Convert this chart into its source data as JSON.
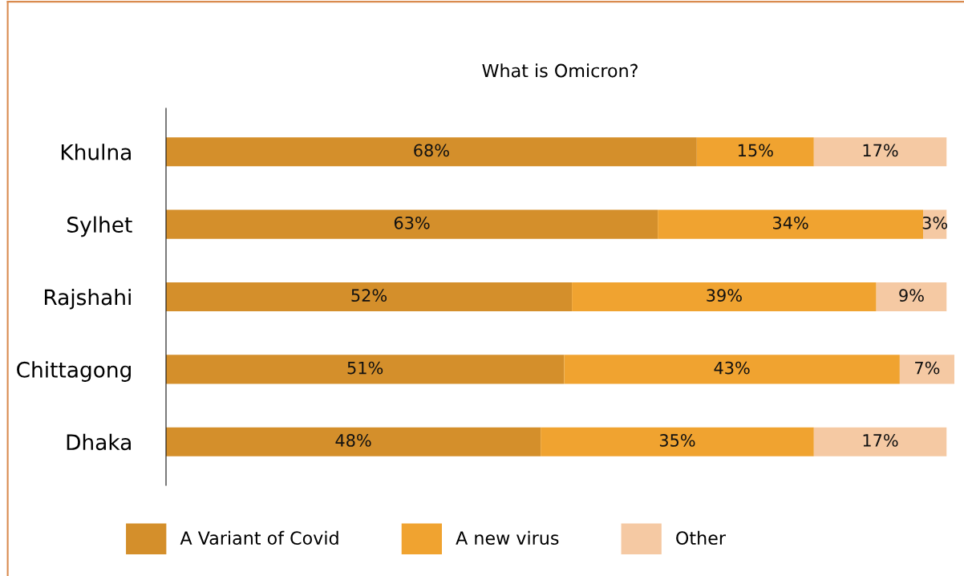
{
  "chart_data": {
    "type": "bar",
    "orientation": "horizontal",
    "stacked": true,
    "title": "What is Omicron?",
    "categories": [
      "Khulna",
      "Sylhet",
      "Rajshahi",
      "Chittagong",
      "Dhaka"
    ],
    "series": [
      {
        "name": "A Variant of Covid",
        "color": "#d48f2b",
        "values": [
          68,
          63,
          52,
          51,
          48
        ],
        "value_labels": [
          "68%",
          "63%",
          "52%",
          "51%",
          "48%"
        ]
      },
      {
        "name": "A new virus",
        "color": "#f0a330",
        "values": [
          15,
          34,
          39,
          43,
          35
        ],
        "value_labels": [
          "15%",
          "34%",
          "39%",
          "43%",
          "35%"
        ]
      },
      {
        "name": "Other",
        "color": "#f5c9a3",
        "values": [
          17,
          3,
          9,
          7,
          17
        ],
        "value_labels": [
          "17%",
          "3%",
          "9%",
          "7%",
          "17%"
        ]
      }
    ],
    "tick_labels": "y",
    "legend": "bottom",
    "grid": false
  }
}
